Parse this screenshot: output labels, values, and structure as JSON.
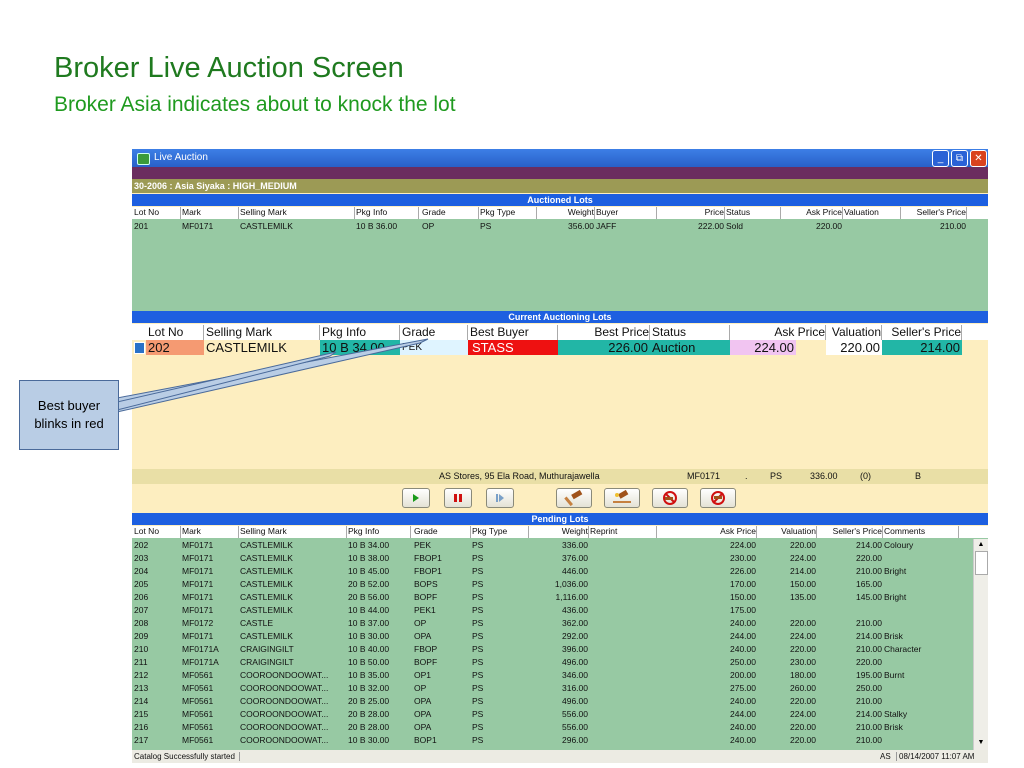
{
  "slide": {
    "title": "Broker Live Auction Screen",
    "subtitle": "Broker Asia indicates about to knock the lot"
  },
  "window": {
    "title": "Live Auction",
    "minimize_glyph": "_",
    "restore_glyph": "⧉",
    "close_glyph": "✕"
  },
  "seller_bar": "30-2006 : Asia Siyaka  : HIGH_MEDIUM",
  "auctioned": {
    "heading": "Auctioned Lots",
    "columns": [
      "Lot No",
      "Mark",
      "Selling Mark",
      "Pkg Info",
      "Grade",
      "Pkg Type",
      "Weight",
      "Buyer",
      "Price",
      "Status",
      "Ask Price",
      "Valuation",
      "Seller's Price"
    ],
    "rows": [
      [
        "201",
        "MF0171",
        "CASTLEMILK",
        "10 B 36.00",
        "OP",
        "PS",
        "356.00",
        "JAFF",
        "222.00",
        "Sold",
        "220.00",
        "",
        "210.00"
      ]
    ]
  },
  "current": {
    "heading": "Current Auctioning Lots",
    "columns": [
      "Lot No",
      "Selling Mark",
      "Pkg Info",
      "Grade",
      "Best Buyer",
      "Best Price",
      "Status",
      "Ask Price",
      "Valuation",
      "Seller's Price"
    ],
    "row": {
      "lot_no": "202",
      "selling_mark": "CASTLEMILK",
      "pkg_info": "10 B 34.00",
      "grade": "PEK",
      "best_buyer": "STASS",
      "best_price": "226.00",
      "status": "Auction",
      "ask_price": "224.00",
      "valuation": "220.00",
      "sellers_price": "214.00"
    },
    "colors": {
      "lot": "#f59a72",
      "pkg": "#22b6a6",
      "grade": "#dff4ff",
      "buyer": "#ee1111",
      "price": "#22b6a6",
      "status": "#22b6a6",
      "ask": "#f1c4f1",
      "valuation": "#ffffff",
      "seller": "#22b6a6"
    }
  },
  "address_bar": {
    "address": "AS Stores, 95 Ela Road, Muthurajawella",
    "mark": "MF0171",
    "dot": ".",
    "pkg": "PS",
    "weight": "336.00",
    "count": "(0)",
    "code": "B"
  },
  "toolbar": {
    "play_icon": "play-icon",
    "pause_icon": "pause-icon",
    "next_icon": "step-forward-icon",
    "hammer_icon": "hammer-icon",
    "knock_icon": "knock-icon",
    "cancel_icon": "cancel-lot-icon",
    "withdraw_icon": "withdraw-lot-icon"
  },
  "pending": {
    "heading": "Pending Lots",
    "columns": [
      "Lot No",
      "Mark",
      "Selling Mark",
      "Pkg Info",
      "Grade",
      "Pkg Type",
      "Weight",
      "Reprint",
      "Ask Price",
      "Valuation",
      "Seller's Price",
      "Comments"
    ],
    "rows": [
      [
        "202",
        "MF0171",
        "CASTLEMILK",
        "10 B 34.00",
        "PEK",
        "PS",
        "336.00",
        "",
        "224.00",
        "220.00",
        "214.00",
        "Coloury"
      ],
      [
        "203",
        "MF0171",
        "CASTLEMILK",
        "10 B 38.00",
        "FBOP1",
        "PS",
        "376.00",
        "",
        "230.00",
        "224.00",
        "220.00",
        ""
      ],
      [
        "204",
        "MF0171",
        "CASTLEMILK",
        "10 B 45.00",
        "FBOP1",
        "PS",
        "446.00",
        "",
        "226.00",
        "214.00",
        "210.00",
        "Bright"
      ],
      [
        "205",
        "MF0171",
        "CASTLEMILK",
        "20 B 52.00",
        "BOPS",
        "PS",
        "1,036.00",
        "",
        "170.00",
        "150.00",
        "165.00",
        ""
      ],
      [
        "206",
        "MF0171",
        "CASTLEMILK",
        "20 B 56.00",
        "BOPF",
        "PS",
        "1,116.00",
        "",
        "150.00",
        "135.00",
        "145.00",
        "Bright"
      ],
      [
        "207",
        "MF0171",
        "CASTLEMILK",
        "10 B 44.00",
        "PEK1",
        "PS",
        "436.00",
        "",
        "175.00",
        "",
        "",
        " "
      ],
      [
        "208",
        "MF0172",
        "CASTLE",
        "10 B 37.00",
        "OP",
        "PS",
        "362.00",
        "",
        "240.00",
        "220.00",
        "210.00",
        ""
      ],
      [
        "209",
        "MF0171",
        "CASTLEMILK",
        "10 B 30.00",
        "OPA",
        "PS",
        "292.00",
        "",
        "244.00",
        "224.00",
        "214.00",
        "Brisk"
      ],
      [
        "210",
        "MF0171A",
        "CRAIGINGILT",
        "10 B 40.00",
        "FBOP",
        "PS",
        "396.00",
        "",
        "240.00",
        "220.00",
        "210.00",
        "Character"
      ],
      [
        "211",
        "MF0171A",
        "CRAIGINGILT",
        "10 B 50.00",
        "BOPF",
        "PS",
        "496.00",
        "",
        "250.00",
        "230.00",
        "220.00",
        ""
      ],
      [
        "212",
        "MF0561",
        "COOROONDOOWAT...",
        "10 B 35.00",
        "OP1",
        "PS",
        "346.00",
        "",
        "200.00",
        "180.00",
        "195.00",
        "Burnt"
      ],
      [
        "213",
        "MF0561",
        "COOROONDOOWAT...",
        "10 B 32.00",
        "OP",
        "PS",
        "316.00",
        "",
        "275.00",
        "260.00",
        "250.00",
        ""
      ],
      [
        "214",
        "MF0561",
        "COOROONDOOWAT...",
        "20 B 25.00",
        "OPA",
        "PS",
        "496.00",
        "",
        "240.00",
        "220.00",
        "210.00",
        ""
      ],
      [
        "215",
        "MF0561",
        "COOROONDOOWAT...",
        "20 B 28.00",
        "OPA",
        "PS",
        "556.00",
        "",
        "244.00",
        "224.00",
        "214.00",
        "Stalky"
      ],
      [
        "216",
        "MF0561",
        "COOROONDOOWAT...",
        "20 B 28.00",
        "OPA",
        "PS",
        "556.00",
        "",
        "240.00",
        "220.00",
        "210.00",
        "Brisk"
      ],
      [
        "217",
        "MF0561",
        "COOROONDOOWAT...",
        "10 B 30.00",
        "BOP1",
        "PS",
        "296.00",
        "",
        "240.00",
        "220.00",
        "210.00",
        ""
      ]
    ]
  },
  "statusbar": {
    "message": "Catalog Successfully started",
    "user": "AS",
    "datetime": "08/14/2007 11:07 AM"
  },
  "callout": {
    "line1": "Best buyer",
    "line2": "blinks in red"
  }
}
